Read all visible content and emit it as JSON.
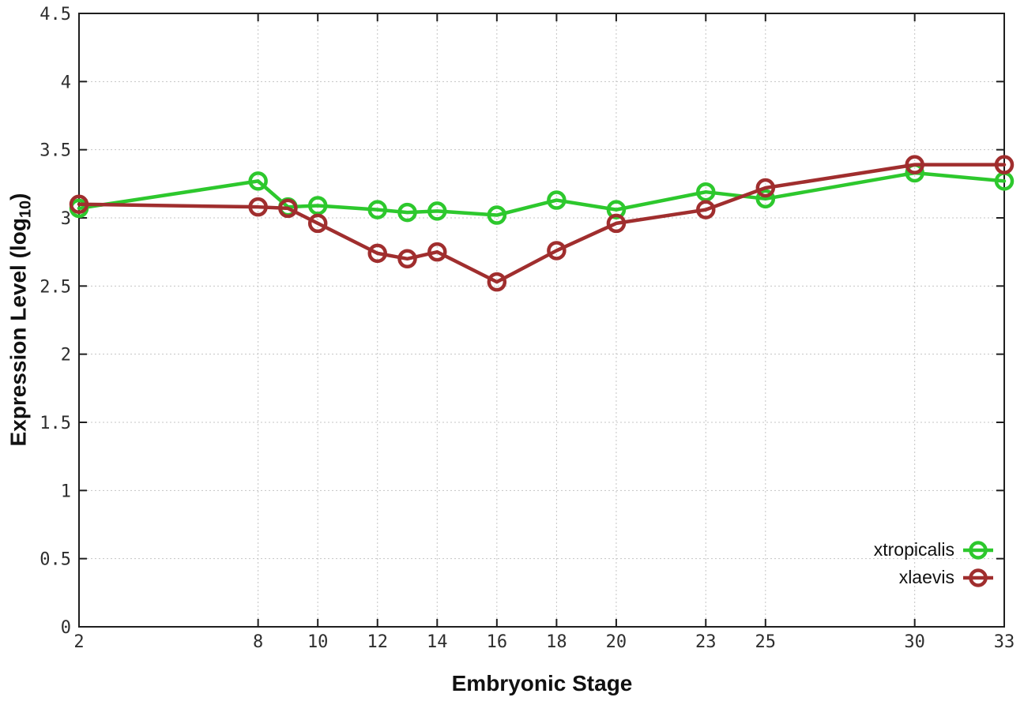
{
  "labels": {
    "xlabel": "Embryonic Stage",
    "ylabel_main": "Expression Level (log",
    "ylabel_sub": "10",
    "ylabel_close": ")"
  },
  "chart_data": {
    "type": "line",
    "title": "",
    "xlabel": "Embryonic Stage",
    "ylabel": "Expression Level (log10)",
    "xlim": [
      2,
      33
    ],
    "ylim": [
      0,
      4.5
    ],
    "grid": true,
    "legend_position": "bottom-right",
    "x_ticks": [
      2,
      8,
      10,
      12,
      14,
      16,
      18,
      20,
      23,
      25,
      30,
      33
    ],
    "x_tick_labels": [
      "2",
      "8",
      "10",
      "12",
      "14",
      "16",
      "18",
      "20",
      "23",
      "25",
      "30",
      "33"
    ],
    "y_ticks": [
      0,
      0.5,
      1,
      1.5,
      2,
      2.5,
      3,
      3.5,
      4,
      4.5
    ],
    "y_tick_labels": [
      "0",
      "0.5",
      "1",
      "1.5",
      "2",
      "2.5",
      "3",
      "3.5",
      "4",
      "4.5"
    ],
    "x": [
      2,
      8,
      9,
      10,
      12,
      13,
      14,
      16,
      18,
      20,
      23,
      25,
      30,
      33
    ],
    "series": [
      {
        "name": "xtropicalis",
        "color": "#2dc82d",
        "values": [
          3.07,
          3.27,
          3.08,
          3.09,
          3.06,
          3.04,
          3.05,
          3.02,
          3.13,
          3.06,
          3.19,
          3.14,
          3.33,
          3.27
        ]
      },
      {
        "name": "xlaevis",
        "color": "#a02e2e",
        "values": [
          3.1,
          3.08,
          3.07,
          2.96,
          2.74,
          2.7,
          2.75,
          2.53,
          2.76,
          2.96,
          3.06,
          3.22,
          3.39,
          3.39
        ]
      }
    ],
    "style": {
      "grid_color": "#c4c4c4",
      "border_color": "#1f1f1f",
      "tick_text_color": "#2e2e2e"
    }
  }
}
